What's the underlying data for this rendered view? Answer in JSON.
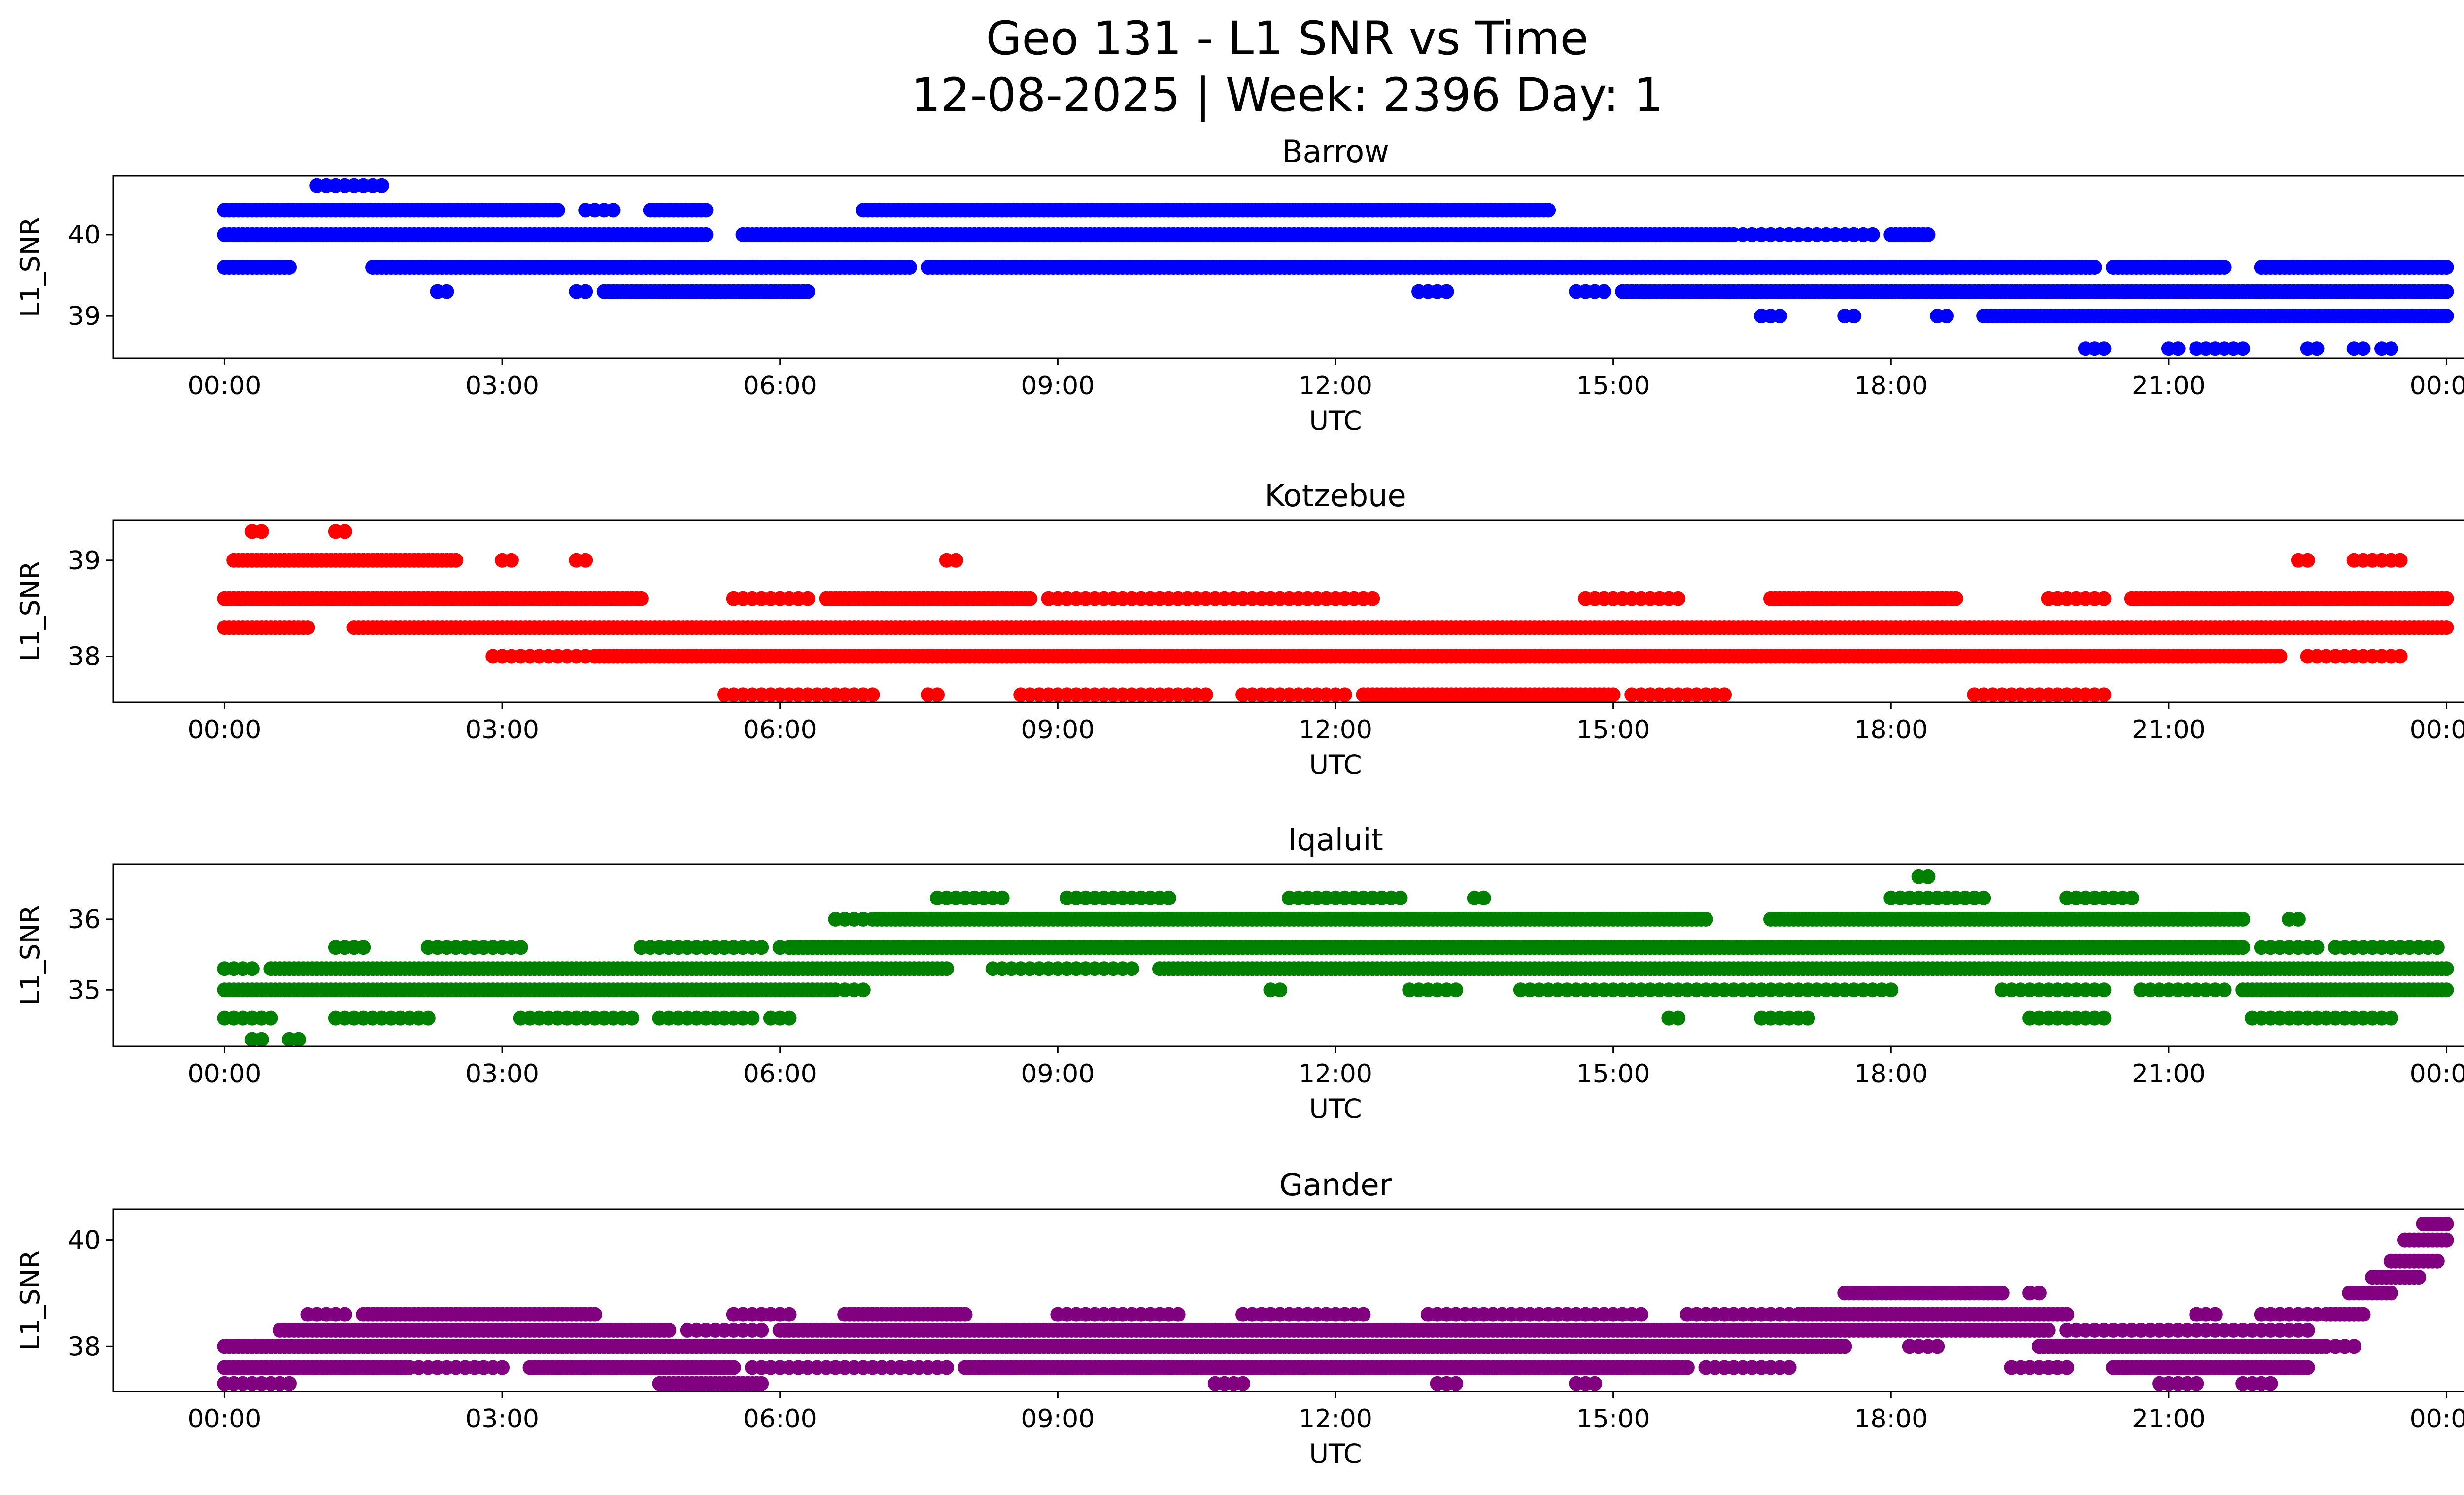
{
  "chart_data": {
    "title": "Geo 131 - L1 SNR vs Time",
    "subtitle": "12-08-2025 | Week: 2396 Day: 1",
    "type": "scatter",
    "x_ticks": [
      "00:00",
      "03:00",
      "06:00",
      "09:00",
      "12:00",
      "15:00",
      "18:00",
      "21:00",
      "00:00"
    ],
    "x_range_hours": [
      -1.2,
      25.2
    ],
    "subplots": [
      {
        "name": "Barrow",
        "color": "#0000ff",
        "xlabel": "UTC",
        "ylabel": "L1_SNR",
        "ylim": [
          38.48,
          40.72
        ],
        "yticks": [
          39,
          40
        ],
        "yticklabels": [
          "39",
          "40"
        ],
        "bands": [
          {
            "y": 40.3,
            "segs": [
              [
                0,
                3.6
              ],
              [
                4.6,
                5.2
              ],
              [
                6.9,
                14.3
              ]
            ],
            "sparse": [
              [
                3.9,
                4.2
              ],
              [
                12.3,
                12.8
              ]
            ]
          },
          {
            "y": 40.0,
            "segs": [
              [
                0,
                5.2
              ],
              [
                5.6,
                16.3
              ],
              [
                18.0,
                18.4
              ]
            ],
            "sparse": [
              [
                16.4,
                17.8
              ]
            ]
          },
          {
            "y": 39.6,
            "segs": [
              [
                0,
                0.7
              ],
              [
                1.6,
                7.4
              ],
              [
                7.6,
                20.2
              ],
              [
                20.4,
                21.6
              ],
              [
                22.0,
                24.0
              ]
            ],
            "sparse": []
          },
          {
            "y": 39.3,
            "segs": [
              [
                4.1,
                6.3
              ],
              [
                15.1,
                24.0
              ]
            ],
            "sparse": [
              [
                2.3,
                2.4
              ],
              [
                3.8,
                3.9
              ],
              [
                12.9,
                13.2
              ],
              [
                14.6,
                14.9
              ]
            ]
          },
          {
            "y": 39.0,
            "segs": [
              [
                19.0,
                24.0
              ]
            ],
            "sparse": [
              [
                16.6,
                16.8
              ],
              [
                17.5,
                17.6
              ],
              [
                18.5,
                18.6
              ]
            ]
          },
          {
            "y": 38.6,
            "segs": [],
            "sparse": [
              [
                20.1,
                20.3
              ],
              [
                21.0,
                21.1
              ],
              [
                21.3,
                21.8
              ],
              [
                22.5,
                22.6
              ],
              [
                23.0,
                23.1
              ],
              [
                23.3,
                23.4
              ]
            ]
          },
          {
            "y": 40.6,
            "segs": [],
            "sparse": [
              [
                1.0,
                1.7
              ]
            ]
          }
        ]
      },
      {
        "name": "Kotzebue",
        "color": "#ff0000",
        "xlabel": "UTC",
        "ylabel": "L1_SNR",
        "ylim": [
          37.52,
          39.42
        ],
        "yticks": [
          38,
          39
        ],
        "yticklabels": [
          "38",
          "39"
        ],
        "bands": [
          {
            "y": 39.3,
            "segs": [],
            "sparse": [
              [
                0.3,
                0.4
              ],
              [
                1.2,
                1.3
              ]
            ]
          },
          {
            "y": 39.0,
            "segs": [
              [
                0.1,
                2.5
              ]
            ],
            "sparse": [
              [
                3.0,
                3.1
              ],
              [
                3.8,
                3.9
              ],
              [
                7.8,
                7.9
              ],
              [
                22.4,
                22.5
              ],
              [
                23.0,
                23.5
              ]
            ]
          },
          {
            "y": 38.6,
            "segs": [
              [
                0,
                4.5
              ],
              [
                6.5,
                8.7
              ],
              [
                16.7,
                18.7
              ],
              [
                20.6,
                24.0
              ]
            ],
            "sparse": [
              [
                5.5,
                6.3
              ],
              [
                8.9,
                12.4
              ],
              [
                14.7,
                15.7
              ],
              [
                19.7,
                20.3
              ]
            ]
          },
          {
            "y": 38.3,
            "segs": [
              [
                0,
                0.9
              ],
              [
                1.4,
                24.0
              ]
            ],
            "sparse": []
          },
          {
            "y": 38.0,
            "segs": [
              [
                4.0,
                22.2
              ]
            ],
            "sparse": [
              [
                2.9,
                3.9
              ],
              [
                22.5,
                23.5
              ]
            ]
          },
          {
            "y": 37.6,
            "segs": [
              [
                12.3,
                15.0
              ]
            ],
            "sparse": [
              [
                5.4,
                7.0
              ],
              [
                7.6,
                7.7
              ],
              [
                8.6,
                10.6
              ],
              [
                11.0,
                12.1
              ],
              [
                15.2,
                16.2
              ],
              [
                18.9,
                20.3
              ]
            ]
          }
        ]
      },
      {
        "name": "Iqaluit",
        "color": "#008000",
        "xlabel": "UTC",
        "ylabel": "L1_SNR",
        "ylim": [
          34.2,
          36.78
        ],
        "yticks": [
          35,
          36
        ],
        "yticklabels": [
          "35",
          "36"
        ],
        "bands": [
          {
            "y": 36.6,
            "segs": [],
            "sparse": [
              [
                18.3,
                18.4
              ]
            ]
          },
          {
            "y": 36.3,
            "segs": [],
            "sparse": [
              [
                7.7,
                8.4
              ],
              [
                9.1,
                10.2
              ],
              [
                11.5,
                12.7
              ],
              [
                13.5,
                13.6
              ],
              [
                18.0,
                19.0
              ],
              [
                19.9,
                20.6
              ]
            ]
          },
          {
            "y": 36.0,
            "segs": [
              [
                7.0,
                16.0
              ],
              [
                16.7,
                21.8
              ]
            ],
            "sparse": [
              [
                6.6,
                6.9
              ],
              [
                22.3,
                22.4
              ]
            ]
          },
          {
            "y": 35.6,
            "segs": [
              [
                6.1,
                21.8
              ]
            ],
            "sparse": [
              [
                1.2,
                1.5
              ],
              [
                2.2,
                3.2
              ],
              [
                4.5,
                5.8
              ],
              [
                6.0,
                6.1
              ],
              [
                22.0,
                22.6
              ],
              [
                22.8,
                23.9
              ]
            ]
          },
          {
            "y": 35.3,
            "segs": [
              [
                0.5,
                7.8
              ],
              [
                10.1,
                24.0
              ]
            ],
            "sparse": [
              [
                0,
                0.3
              ],
              [
                8.3,
                9.8
              ]
            ]
          },
          {
            "y": 35.0,
            "segs": [
              [
                0,
                6.6
              ],
              [
                21.8,
                24.0
              ]
            ],
            "sparse": [
              [
                6.7,
                6.9
              ],
              [
                11.3,
                11.4
              ],
              [
                12.8,
                13.3
              ],
              [
                14.0,
                18.0
              ],
              [
                19.2,
                20.3
              ],
              [
                20.7,
                21.6
              ]
            ]
          },
          {
            "y": 34.6,
            "segs": [],
            "sparse": [
              [
                0,
                0.5
              ],
              [
                1.2,
                2.2
              ],
              [
                3.2,
                4.4
              ],
              [
                4.7,
                5.7
              ],
              [
                5.9,
                6.1
              ],
              [
                15.6,
                15.7
              ],
              [
                16.6,
                17.1
              ],
              [
                19.5,
                20.3
              ],
              [
                21.9,
                23.4
              ]
            ]
          },
          {
            "y": 34.3,
            "segs": [],
            "sparse": [
              [
                0.3,
                0.4
              ],
              [
                0.7,
                0.8
              ]
            ]
          }
        ]
      },
      {
        "name": "Gander",
        "color": "#800080",
        "xlabel": "UTC",
        "ylabel": "L1_SNR",
        "ylim": [
          37.15,
          40.58
        ],
        "yticks": [
          38,
          40
        ],
        "yticklabels": [
          "38",
          "40"
        ],
        "bands": [
          {
            "y": 40.3,
            "segs": [
              [
                23.75,
                24.0
              ]
            ],
            "sparse": []
          },
          {
            "y": 40.0,
            "segs": [
              [
                23.55,
                24.0
              ]
            ],
            "sparse": []
          },
          {
            "y": 39.6,
            "segs": [
              [
                23.4,
                23.9
              ]
            ],
            "sparse": []
          },
          {
            "y": 39.3,
            "segs": [
              [
                23.2,
                23.7
              ]
            ],
            "sparse": []
          },
          {
            "y": 39.0,
            "segs": [
              [
                17.5,
                19.2
              ],
              [
                22.95,
                23.4
              ]
            ],
            "sparse": [
              [
                19.5,
                19.6
              ]
            ]
          },
          {
            "y": 38.6,
            "segs": [
              [
                1.5,
                4.0
              ],
              [
                6.7,
                8.0
              ],
              [
                17.0,
                19.9
              ],
              [
                22.7,
                23.1
              ]
            ],
            "sparse": [
              [
                0.9,
                1.3
              ],
              [
                5.5,
                6.1
              ],
              [
                9.0,
                10.3
              ],
              [
                11.0,
                12.3
              ],
              [
                13.0,
                15.3
              ],
              [
                15.8,
                16.9
              ],
              [
                21.3,
                21.5
              ],
              [
                22.0,
                22.6
              ]
            ]
          },
          {
            "y": 38.3,
            "segs": [
              [
                0.6,
                4.8
              ],
              [
                6.0,
                19.7
              ]
            ],
            "sparse": [
              [
                5.0,
                5.8
              ],
              [
                19.9,
                22.5
              ]
            ]
          },
          {
            "y": 38.0,
            "segs": [
              [
                0,
                17.5
              ],
              [
                19.6,
                22.7
              ]
            ],
            "sparse": [
              [
                18.2,
                18.5
              ],
              [
                22.8,
                23.0
              ]
            ]
          },
          {
            "y": 37.6,
            "segs": [
              [
                0,
                2.0
              ],
              [
                3.3,
                5.5
              ],
              [
                8.0,
                15.8
              ],
              [
                20.4,
                22.5
              ]
            ],
            "sparse": [
              [
                2.1,
                3.0
              ],
              [
                5.7,
                7.8
              ],
              [
                16.0,
                16.9
              ],
              [
                19.3,
                19.9
              ]
            ]
          },
          {
            "y": 37.3,
            "segs": [
              [
                4.7,
                5.8
              ]
            ],
            "sparse": [
              [
                0,
                0.7
              ],
              [
                10.7,
                11.0
              ],
              [
                13.1,
                13.3
              ],
              [
                14.6,
                14.8
              ],
              [
                20.9,
                21.3
              ],
              [
                21.8,
                22.1
              ]
            ]
          }
        ]
      }
    ]
  }
}
